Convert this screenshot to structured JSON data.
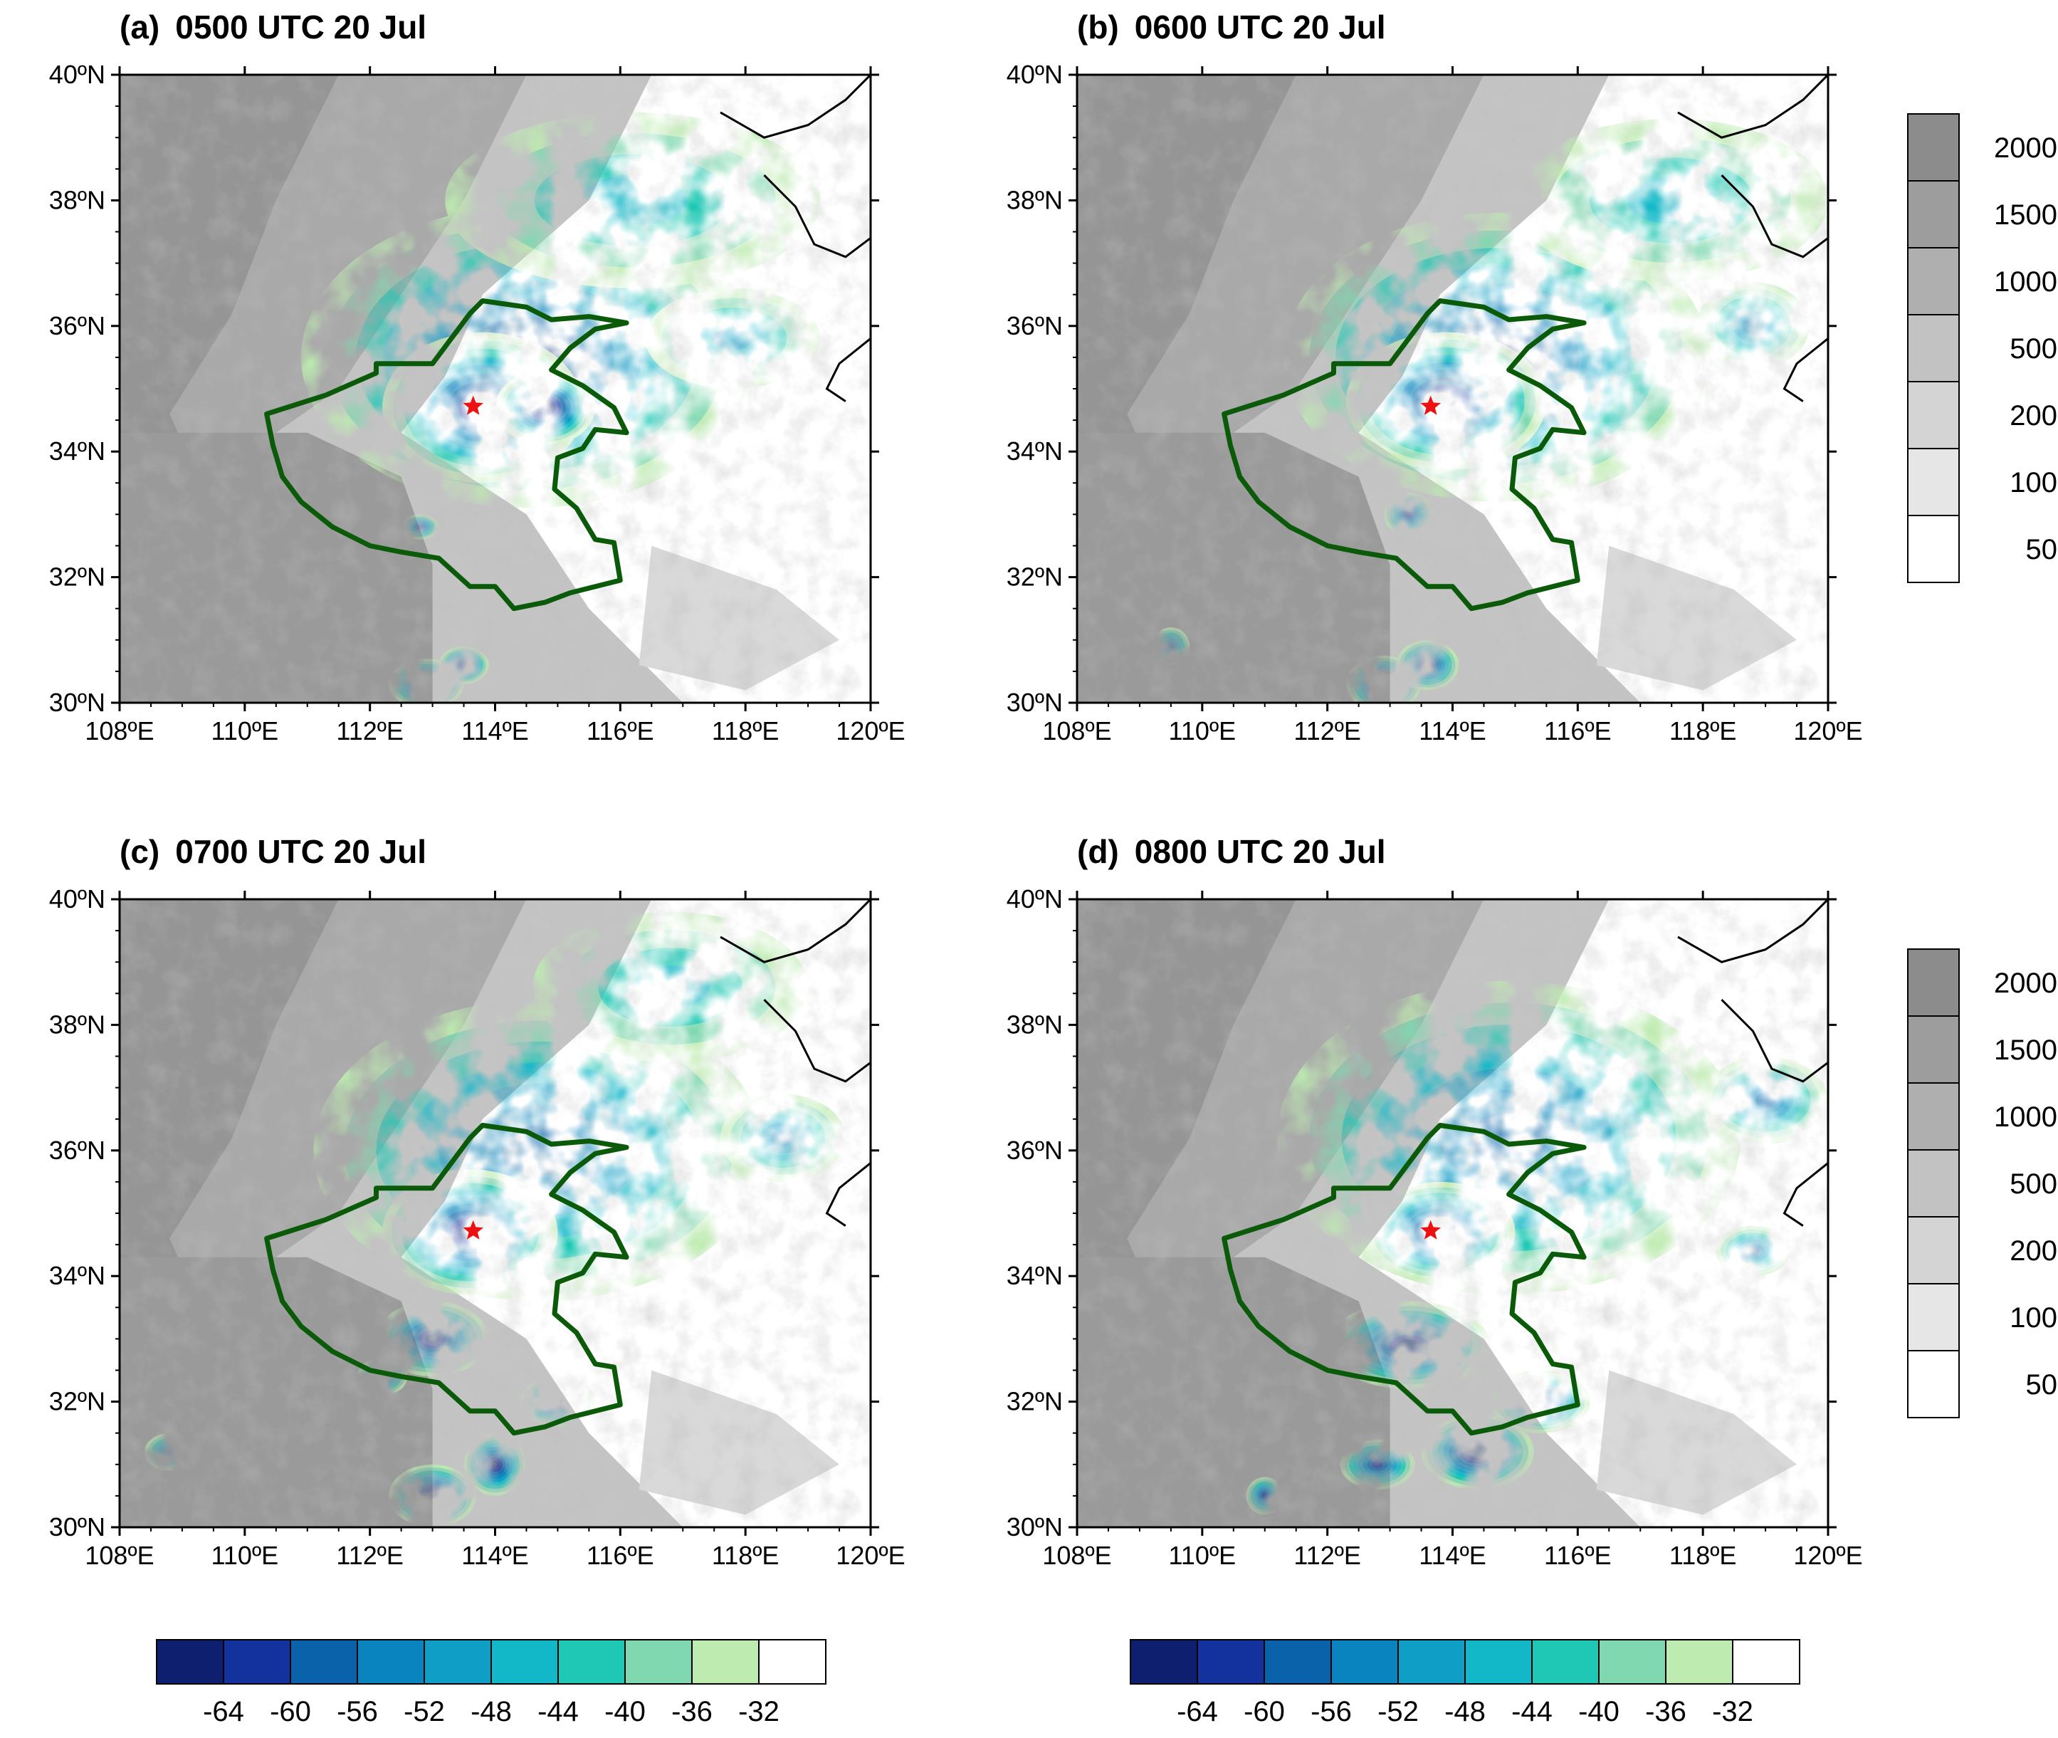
{
  "figure": {
    "panels": [
      {
        "id": "a",
        "label": "(a)",
        "time": "0500 UTC 20 Jul"
      },
      {
        "id": "b",
        "label": "(b)",
        "time": "0600 UTC 20 Jul"
      },
      {
        "id": "c",
        "label": "(c)",
        "time": "0700 UTC 20 Jul"
      },
      {
        "id": "d",
        "label": "(d)",
        "time": "0800 UTC 20 Jul"
      }
    ],
    "lat_ticks": [
      "40ºN",
      "38ºN",
      "36ºN",
      "34ºN",
      "32ºN",
      "30ºN"
    ],
    "lon_ticks": [
      "108ºE",
      "110ºE",
      "112ºE",
      "114ºE",
      "116ºE",
      "118ºE",
      "120ºE"
    ],
    "lat_range": [
      30,
      40
    ],
    "lon_range": [
      108,
      120
    ],
    "station_marker": {
      "symbol": "star",
      "color": "#ee1111",
      "lon": 113.65,
      "lat": 34.72
    },
    "province_outline_color": "#0a5a0a",
    "coastline_color": "#000000"
  },
  "terrain_colorbar": {
    "labels": [
      "2000",
      "1500",
      "1000",
      "500",
      "200",
      "100",
      "50"
    ],
    "colors": [
      "#8c8c8c",
      "#9d9d9d",
      "#afafaf",
      "#c2c2c2",
      "#d4d4d4",
      "#e6e6e6",
      "#ffffff"
    ]
  },
  "tbb_colorbar": {
    "labels": [
      "-64",
      "-60",
      "-56",
      "-52",
      "-48",
      "-44",
      "-40",
      "-36",
      "-32"
    ],
    "colors": [
      "#0d1f6e",
      "#14329e",
      "#0a62aa",
      "#0a84be",
      "#0e9ec6",
      "#12b8c8",
      "#1fc8b4",
      "#7fd8b0",
      "#bdebb0",
      "#ffffff"
    ]
  }
}
